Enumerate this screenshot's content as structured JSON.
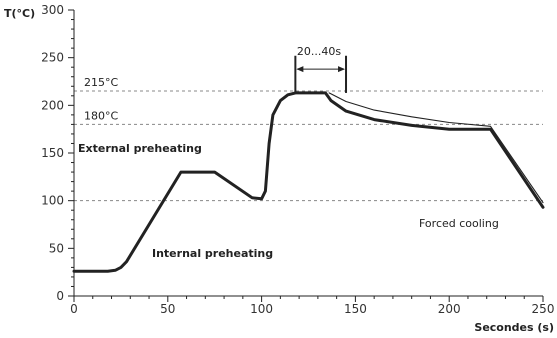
{
  "chart_data": {
    "type": "line",
    "xlabel": "Secondes (s)",
    "ylabel": "T(°C)",
    "xlim": [
      0,
      250
    ],
    "ylim": [
      0,
      300
    ],
    "x_ticks": [
      "0",
      "50",
      "100",
      "150",
      "200",
      "250"
    ],
    "y_ticks": [
      "0",
      "50",
      "100",
      "150",
      "200",
      "250",
      "300"
    ],
    "reference_lines": [
      {
        "label": "215°C",
        "value": 215
      },
      {
        "label": "180°C",
        "value": 180
      },
      {
        "label": "",
        "value": 100
      }
    ],
    "series": [
      {
        "style": "thick",
        "x": [
          0,
          18,
          22,
          25,
          28,
          57,
          75,
          95,
          100,
          102,
          104,
          106,
          110,
          114,
          118,
          125,
          134,
          137,
          145,
          160,
          180,
          200,
          222,
          250
        ],
        "y": [
          26,
          26,
          27,
          30,
          36,
          130,
          130,
          103,
          102,
          110,
          160,
          190,
          205,
          211,
          213,
          213,
          213,
          205,
          194,
          185,
          179,
          175,
          175,
          93
        ]
      },
      {
        "style": "thin",
        "x": [
          136,
          145,
          160,
          180,
          200,
          222,
          250
        ],
        "y": [
          213,
          204,
          195,
          188,
          182,
          178,
          98
        ]
      }
    ],
    "annotations": {
      "external": "External preheating",
      "internal": "Internal preheating",
      "forced": "Forced cooling",
      "interval": "20...40s"
    }
  }
}
